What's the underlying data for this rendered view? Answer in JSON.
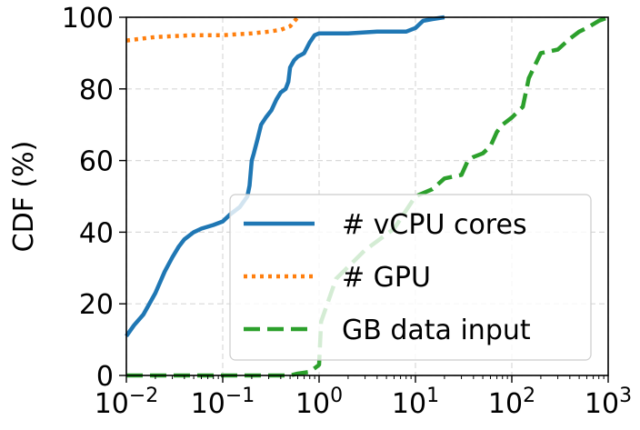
{
  "chart_data": {
    "type": "line",
    "title": "",
    "xlabel": "",
    "ylabel": "CDF (%)",
    "xscale": "log",
    "xlim": [
      0.01,
      1000
    ],
    "ylim": [
      0,
      100
    ],
    "grid": true,
    "legend_position": "lower-right",
    "x_ticks": [
      {
        "base": "10",
        "exp": "−2",
        "value": 0.01
      },
      {
        "base": "10",
        "exp": "−1",
        "value": 0.1
      },
      {
        "base": "10",
        "exp": "0",
        "value": 1
      },
      {
        "base": "10",
        "exp": "1",
        "value": 10
      },
      {
        "base": "10",
        "exp": "2",
        "value": 100
      },
      {
        "base": "10",
        "exp": "3",
        "value": 1000
      }
    ],
    "y_ticks": [
      "0",
      "20",
      "40",
      "60",
      "80",
      "100"
    ],
    "series": [
      {
        "name": "# vCPU cores",
        "color": "#1f77b4",
        "style": "solid",
        "x": [
          0.01,
          0.012,
          0.015,
          0.02,
          0.025,
          0.03,
          0.035,
          0.04,
          0.05,
          0.06,
          0.08,
          0.1,
          0.12,
          0.15,
          0.18,
          0.19,
          0.2,
          0.21,
          0.23,
          0.25,
          0.28,
          0.32,
          0.36,
          0.4,
          0.45,
          0.48,
          0.5,
          0.55,
          0.6,
          0.65,
          0.7,
          0.8,
          0.9,
          1.0,
          2.0,
          4.0,
          8.0,
          10.0,
          12.0,
          15.0,
          20.0
        ],
        "y": [
          11,
          14,
          17,
          23,
          29,
          33,
          36,
          38,
          40,
          41,
          42,
          43,
          45,
          47,
          50,
          53,
          60,
          62,
          66,
          70,
          72,
          74,
          77,
          79,
          80,
          82,
          86,
          88,
          89,
          89.5,
          90,
          93,
          95,
          95.5,
          95.5,
          96,
          96,
          97,
          99,
          99.5,
          100
        ]
      },
      {
        "name": "# GPU",
        "color": "#ff7f0e",
        "style": "dotted",
        "x": [
          0.01,
          0.02,
          0.05,
          0.1,
          0.2,
          0.3,
          0.4,
          0.5,
          0.6
        ],
        "y": [
          93.5,
          94.5,
          95,
          95,
          95.5,
          96,
          96.5,
          97.5,
          100
        ]
      },
      {
        "name": "GB data input",
        "color": "#2ca02c",
        "style": "dashed",
        "x": [
          0.01,
          0.05,
          0.2,
          0.5,
          0.6,
          0.8,
          0.9,
          1.0,
          1.05,
          1.5,
          3.0,
          6.0,
          10.0,
          15.0,
          20.0,
          30.0,
          35.0,
          40.0,
          50.0,
          60.0,
          70.0,
          80.0,
          100.0,
          130.0,
          150.0,
          200.0,
          300.0,
          400.0,
          500.0,
          600.0,
          800.0,
          1000.0
        ],
        "y": [
          0,
          0,
          0,
          0,
          0.5,
          1,
          2,
          3,
          15,
          27,
          35,
          41,
          50,
          52,
          55,
          56,
          60,
          61,
          62,
          64,
          68,
          70,
          72,
          75,
          83,
          90,
          91,
          94,
          96,
          97,
          99,
          100
        ]
      }
    ]
  }
}
